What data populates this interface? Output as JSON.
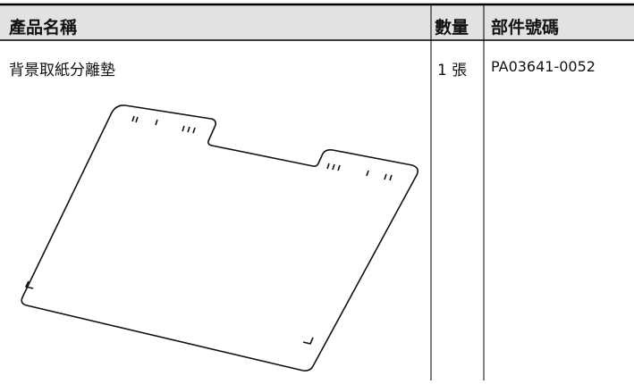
{
  "table": {
    "header": [
      "產品名稱",
      "數量",
      "部件號碼"
    ],
    "rows": [
      [
        "背景取紙分離墊",
        "1 張",
        "PA03641-0052"
      ]
    ]
  }
}
